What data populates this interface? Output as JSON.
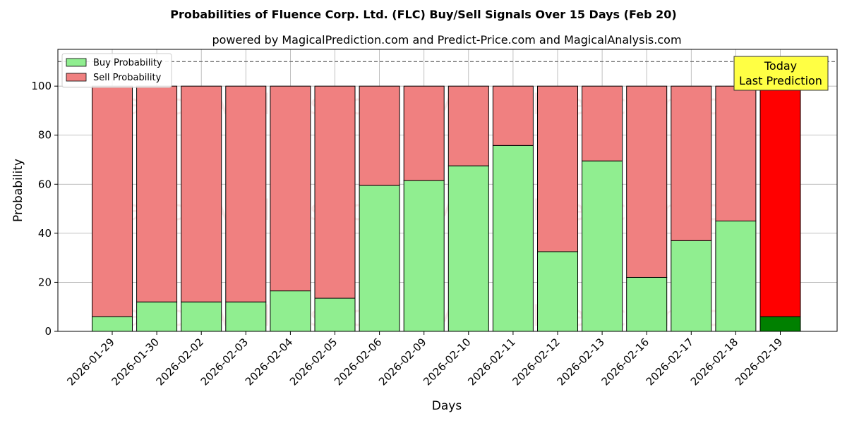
{
  "chart_data": {
    "type": "bar",
    "stacked": true,
    "title": "Probabilities of Fluence Corp. Ltd. (FLC) Buy/Sell Signals Over 15 Days (Feb 20)",
    "subtitle": "powered by MagicalPrediction.com and Predict-Price.com and MagicalAnalysis.com",
    "xlabel": "Days",
    "ylabel": "Probability",
    "ylim": [
      0,
      115
    ],
    "yticks": [
      0,
      20,
      40,
      60,
      80,
      100
    ],
    "grid": true,
    "legend_position": "upper-left",
    "reference_line": 110,
    "categories": [
      "2026-01-29",
      "2026-01-30",
      "2026-02-02",
      "2026-02-03",
      "2026-02-04",
      "2026-02-05",
      "2026-02-06",
      "2026-02-09",
      "2026-02-10",
      "2026-02-11",
      "2026-02-12",
      "2026-02-13",
      "2026-02-16",
      "2026-02-17",
      "2026-02-18",
      "2026-02-19"
    ],
    "series": [
      {
        "name": "Buy Probability",
        "color": "#90ee90",
        "values": [
          6,
          12,
          12,
          12,
          16.5,
          13.5,
          59.5,
          61.5,
          67.5,
          75.8,
          32.5,
          69.5,
          22,
          37,
          45,
          6
        ]
      },
      {
        "name": "Sell Probability",
        "color": "#f08080",
        "values": [
          94,
          88,
          88,
          88,
          83.5,
          86.5,
          40.5,
          38.5,
          32.5,
          24.2,
          67.5,
          30.5,
          78,
          63,
          55,
          94
        ]
      }
    ],
    "highlight": {
      "index": 15,
      "buy_color": "#008000",
      "sell_color": "#ff0000",
      "label_line1": "Today",
      "label_line2": "Last Prediction",
      "label_bg": "#ffff44"
    },
    "watermarks": [
      "MagicalAnalysis.com",
      "MagicalPrediction.com"
    ]
  }
}
